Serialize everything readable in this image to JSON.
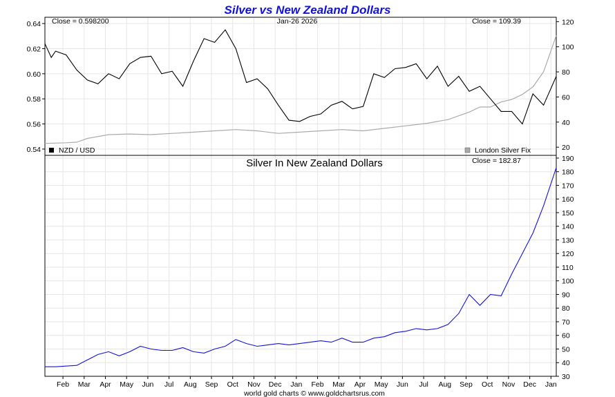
{
  "chart_data": {
    "title": "Silver vs New Zealand Dollars",
    "footer": "world gold charts © www.goldchartsrus.com",
    "x_months": [
      "Feb",
      "Mar",
      "Apr",
      "May",
      "Jun",
      "Jul",
      "Aug",
      "Sep",
      "Oct",
      "Nov",
      "Dec",
      "Jan",
      "Feb",
      "Mar",
      "Apr",
      "May",
      "Jun",
      "Jul",
      "Aug",
      "Sep",
      "Oct",
      "Nov",
      "Dec",
      "Jan"
    ],
    "colors": {
      "title": "#1010e0",
      "nzd": "#000000",
      "silver_fix": "#aaaaaa",
      "silver_nzd": "#1111dd",
      "grid": "#e6e6e6"
    },
    "top_panel": {
      "type": "line",
      "left_annotation": "Close = 0.598200",
      "center_annotation": "Jan-26  2026",
      "right_annotation": "Close = 109.39",
      "left_axis": {
        "ylim": [
          0.535,
          0.645
        ],
        "ticks": [
          "0.54",
          "0.56",
          "0.58",
          "0.60",
          "0.62",
          "0.64"
        ]
      },
      "right_axis": {
        "ylim": [
          13.5,
          123.5
        ],
        "ticks": [
          "20",
          "40",
          "60",
          "80",
          "100",
          "120"
        ]
      },
      "legend_left": "NZD / USD",
      "legend_right": "London Silver Fix",
      "series": [
        {
          "name": "NZD / USD",
          "axis": "left",
          "x": [
            0,
            0.3,
            0.5,
            1,
            1.5,
            2,
            2.5,
            3,
            3.5,
            4,
            4.5,
            5,
            5.5,
            6,
            6.5,
            7,
            7.5,
            8,
            8.5,
            9,
            9.5,
            10,
            10.5,
            11,
            11.5,
            12,
            12.5,
            13,
            13.5,
            14,
            14.5,
            15,
            15.5,
            16,
            16.5,
            17,
            17.5,
            18,
            18.5,
            19,
            19.5,
            20,
            20.5,
            21,
            21.5,
            22,
            22.5,
            23,
            23.5,
            24.1
          ],
          "values": [
            0.624,
            0.613,
            0.618,
            0.615,
            0.603,
            0.595,
            0.592,
            0.6,
            0.596,
            0.608,
            0.613,
            0.614,
            0.6,
            0.602,
            0.59,
            0.61,
            0.628,
            0.625,
            0.635,
            0.62,
            0.593,
            0.596,
            0.588,
            0.575,
            0.563,
            0.562,
            0.566,
            0.568,
            0.575,
            0.578,
            0.572,
            0.574,
            0.6,
            0.597,
            0.604,
            0.605,
            0.608,
            0.596,
            0.606,
            0.59,
            0.598,
            0.586,
            0.59,
            0.58,
            0.57,
            0.57,
            0.56,
            0.584,
            0.575,
            0.598
          ]
        },
        {
          "name": "London Silver Fix",
          "axis": "right",
          "x": [
            0,
            1,
            1.5,
            2,
            3,
            4,
            5,
            6,
            7,
            8,
            9,
            10,
            11,
            12,
            13,
            14,
            15,
            16,
            17,
            18,
            19,
            20,
            20.5,
            21,
            21.5,
            22,
            22.5,
            23,
            23.5,
            24.1
          ],
          "values": [
            23,
            23.5,
            24,
            27,
            30,
            30.5,
            30,
            31,
            32,
            33,
            34,
            33,
            31,
            32,
            33,
            34,
            33,
            35,
            37,
            39,
            42,
            48,
            52,
            52,
            56,
            58,
            62,
            68,
            80,
            109
          ]
        }
      ]
    },
    "bottom_panel": {
      "type": "line",
      "title": "Silver In New Zealand Dollars",
      "right_annotation": "Close = 182.87",
      "right_axis": {
        "ylim": [
          30,
          192
        ],
        "ticks": [
          "30",
          "40",
          "50",
          "60",
          "70",
          "80",
          "90",
          "100",
          "110",
          "120",
          "130",
          "140",
          "150",
          "160",
          "170",
          "180",
          "190"
        ]
      },
      "series": [
        {
          "name": "Silver In New Zealand Dollars",
          "axis": "right",
          "x": [
            0,
            0.5,
            1,
            1.5,
            2,
            2.5,
            3,
            3.5,
            4,
            4.5,
            5,
            5.5,
            6,
            6.5,
            7,
            7.5,
            8,
            8.5,
            9,
            9.5,
            10,
            10.5,
            11,
            11.5,
            12,
            12.5,
            13,
            13.5,
            14,
            14.5,
            15,
            15.5,
            16,
            16.5,
            17,
            17.5,
            18,
            18.5,
            19,
            19.5,
            20,
            20.5,
            21,
            21.5,
            22,
            22.5,
            23,
            23.5,
            24.1
          ],
          "values": [
            37,
            37,
            37.5,
            38,
            42,
            46,
            48,
            45,
            48,
            52,
            50,
            49,
            49,
            51,
            48,
            47,
            50,
            52,
            57,
            54,
            52,
            53,
            54,
            53,
            54,
            55,
            56,
            55,
            58,
            55,
            55,
            58,
            59,
            62,
            63,
            65,
            64,
            65,
            68,
            76,
            90,
            82,
            90,
            89,
            105,
            120,
            135,
            155,
            183
          ]
        }
      ]
    }
  }
}
